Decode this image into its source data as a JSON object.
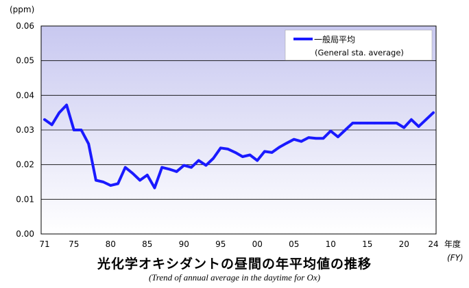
{
  "chart_data": {
    "type": "line",
    "title": "光化学オキシダントの昼間の年平均値の推移",
    "subtitle": "(Trend of annual average in the daytime for Ox)",
    "ylabel": "(ppm)",
    "xlabel": "年度",
    "xlabel_sub": "(FY)",
    "ylim": [
      0,
      0.06
    ],
    "yticks": [
      "0.00",
      "0.01",
      "0.02",
      "0.03",
      "0.04",
      "0.05",
      "0.06"
    ],
    "x_tick_labels": [
      {
        "idx": 0,
        "label": "71"
      },
      {
        "idx": 4,
        "label": "75"
      },
      {
        "idx": 9,
        "label": "80"
      },
      {
        "idx": 14,
        "label": "85"
      },
      {
        "idx": 19,
        "label": "90"
      },
      {
        "idx": 24,
        "label": "95"
      },
      {
        "idx": 29,
        "label": "00"
      },
      {
        "idx": 34,
        "label": "05"
      },
      {
        "idx": 39,
        "label": "10"
      },
      {
        "idx": 44,
        "label": "15"
      },
      {
        "idx": 49,
        "label": "20"
      },
      {
        "idx": 53,
        "label": "24"
      }
    ],
    "grid": "horizontal",
    "legend_position": "top-right",
    "background_gradient": [
      "#c8c8f0",
      "#ffffff"
    ],
    "series": [
      {
        "name": "一般局平均",
        "name_sub": "(General sta. average)",
        "color": "#1a1aff",
        "x": [
          "1971",
          "1972",
          "1973",
          "1974",
          "1975",
          "1976",
          "1977",
          "1978",
          "1979",
          "1980",
          "1981",
          "1982",
          "1983",
          "1984",
          "1985",
          "1986",
          "1987",
          "1988",
          "1989",
          "1990",
          "1991",
          "1992",
          "1993",
          "1994",
          "1995",
          "1996",
          "1997",
          "1998",
          "1999",
          "2000",
          "2001",
          "2002",
          "2003",
          "2004",
          "2005",
          "2006",
          "2007",
          "2008",
          "2009",
          "2010",
          "2011",
          "2012",
          "2013",
          "2014",
          "2015",
          "2016",
          "2017",
          "2018",
          "2019",
          "2020",
          "2021",
          "2022",
          "2023",
          "2024"
        ],
        "values": [
          0.033,
          0.0315,
          0.035,
          0.0372,
          0.03,
          0.03,
          0.026,
          0.0155,
          0.015,
          0.014,
          0.0145,
          0.0192,
          0.0175,
          0.0155,
          0.017,
          0.0133,
          0.0192,
          0.0187,
          0.018,
          0.0198,
          0.0192,
          0.0212,
          0.0198,
          0.0218,
          0.0248,
          0.0245,
          0.0235,
          0.0223,
          0.0228,
          0.0212,
          0.0238,
          0.0235,
          0.025,
          0.0262,
          0.0273,
          0.0267,
          0.0278,
          0.0276,
          0.0276,
          0.0297,
          0.028,
          0.03,
          0.032,
          0.032,
          0.032,
          0.032,
          0.032,
          0.032,
          0.032,
          0.0307,
          0.033,
          0.031,
          0.033,
          0.035
        ]
      }
    ]
  }
}
